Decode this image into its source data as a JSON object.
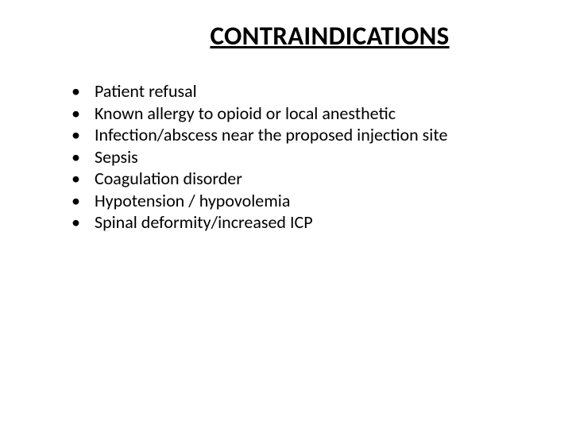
{
  "slide": {
    "title": "CONTRAINDICATIONS",
    "bullets": [
      "Patient refusal",
      "Known allergy  to opioid or local anesthetic",
      "Infection/abscess near the proposed injection site",
      "Sepsis",
      "Coagulation disorder",
      "Hypotension / hypovolemia",
      "Spinal deformity/increased ICP"
    ],
    "styling": {
      "background_color": "#ffffff",
      "text_color": "#000000",
      "title_fontsize": 33,
      "title_weight": "bold",
      "title_underline": true,
      "body_fontsize": 22,
      "bullet_marker": "•",
      "font_family": "Calibri, Arial, sans-serif",
      "slide_width": 720,
      "slide_height": 540
    }
  }
}
